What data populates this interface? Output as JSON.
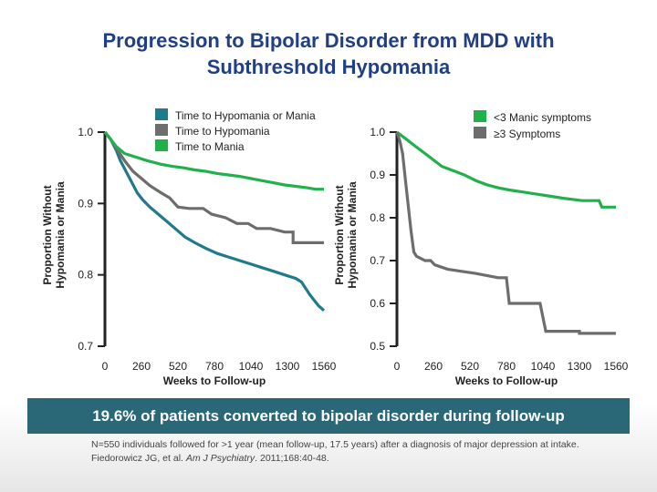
{
  "title_line1": "Progression to Bipolar Disorder from MDD with",
  "title_line2": "Subthreshold Hypomania",
  "colors": {
    "mania_or_hypomania": "#1f7b8c",
    "hypomania": "#6d6d6d",
    "mania": "#22b04b",
    "lt3": "#22b04b",
    "ge3": "#6d6d6d"
  },
  "chart_data": [
    {
      "type": "line",
      "ylabel_line1": "Proportion Without",
      "ylabel_line2": "Hypomania or Mania",
      "xlabel": "Weeks to Follow-up",
      "x_ticks": [
        "0",
        "260",
        "520",
        "780",
        "1040",
        "1300",
        "1560"
      ],
      "y_ticks": [
        "1.0",
        "0.9",
        "0.8",
        "0.7"
      ],
      "xlim": [
        0,
        1560
      ],
      "ylim": [
        0.7,
        1.0
      ],
      "series": [
        {
          "name": "Time to Hypomania or Mania",
          "color_key": "mania_or_hypomania",
          "points": [
            [
              0,
              1.0
            ],
            [
              40,
              0.99
            ],
            [
              80,
              0.975
            ],
            [
              110,
              0.96
            ],
            [
              150,
              0.945
            ],
            [
              190,
              0.93
            ],
            [
              230,
              0.915
            ],
            [
              270,
              0.905
            ],
            [
              320,
              0.895
            ],
            [
              380,
              0.885
            ],
            [
              440,
              0.875
            ],
            [
              500,
              0.865
            ],
            [
              570,
              0.853
            ],
            [
              640,
              0.845
            ],
            [
              720,
              0.837
            ],
            [
              800,
              0.83
            ],
            [
              880,
              0.825
            ],
            [
              960,
              0.82
            ],
            [
              1040,
              0.815
            ],
            [
              1120,
              0.81
            ],
            [
              1200,
              0.805
            ],
            [
              1280,
              0.8
            ],
            [
              1360,
              0.795
            ],
            [
              1400,
              0.79
            ],
            [
              1460,
              0.772
            ],
            [
              1520,
              0.757
            ],
            [
              1560,
              0.75
            ]
          ]
        },
        {
          "name": "Time to Hypomania",
          "color_key": "hypomania",
          "points": [
            [
              0,
              1.0
            ],
            [
              40,
              0.99
            ],
            [
              90,
              0.975
            ],
            [
              140,
              0.96
            ],
            [
              200,
              0.945
            ],
            [
              260,
              0.935
            ],
            [
              320,
              0.925
            ],
            [
              400,
              0.915
            ],
            [
              460,
              0.908
            ],
            [
              520,
              0.895
            ],
            [
              600,
              0.893
            ],
            [
              700,
              0.893
            ],
            [
              760,
              0.885
            ],
            [
              860,
              0.88
            ],
            [
              940,
              0.872
            ],
            [
              1020,
              0.872
            ],
            [
              1080,
              0.865
            ],
            [
              1180,
              0.865
            ],
            [
              1280,
              0.86
            ],
            [
              1340,
              0.86
            ],
            [
              1340,
              0.845
            ],
            [
              1440,
              0.845
            ],
            [
              1560,
              0.845
            ]
          ]
        },
        {
          "name": "Time to Mania",
          "color_key": "mania",
          "points": [
            [
              0,
              1.0
            ],
            [
              40,
              0.99
            ],
            [
              80,
              0.98
            ],
            [
              140,
              0.97
            ],
            [
              220,
              0.965
            ],
            [
              300,
              0.96
            ],
            [
              400,
              0.955
            ],
            [
              480,
              0.952
            ],
            [
              560,
              0.95
            ],
            [
              640,
              0.947
            ],
            [
              720,
              0.945
            ],
            [
              800,
              0.942
            ],
            [
              880,
              0.94
            ],
            [
              960,
              0.938
            ],
            [
              1040,
              0.935
            ],
            [
              1120,
              0.932
            ],
            [
              1200,
              0.929
            ],
            [
              1280,
              0.926
            ],
            [
              1360,
              0.924
            ],
            [
              1440,
              0.922
            ],
            [
              1500,
              0.92
            ],
            [
              1560,
              0.92
            ]
          ]
        }
      ],
      "legend": [
        "Time to Hypomania or Mania",
        "Time to Hypomania",
        "Time to Mania"
      ]
    },
    {
      "type": "line",
      "ylabel_line1": "Proportion Without",
      "ylabel_line2": "Hypomania or Mania",
      "xlabel": "Weeks to Follow-up",
      "x_ticks": [
        "0",
        "260",
        "520",
        "780",
        "1040",
        "1300",
        "1560"
      ],
      "y_ticks": [
        "1.0",
        "0.9",
        "0.8",
        "0.7",
        "0.6",
        "0.5"
      ],
      "xlim": [
        0,
        1560
      ],
      "ylim": [
        0.5,
        1.0
      ],
      "series": [
        {
          "name": "<3 Manic symptoms",
          "color_key": "lt3",
          "points": [
            [
              0,
              1.0
            ],
            [
              40,
              0.99
            ],
            [
              80,
              0.98
            ],
            [
              140,
              0.965
            ],
            [
              200,
              0.95
            ],
            [
              260,
              0.935
            ],
            [
              320,
              0.92
            ],
            [
              400,
              0.91
            ],
            [
              480,
              0.9
            ],
            [
              560,
              0.887
            ],
            [
              640,
              0.877
            ],
            [
              720,
              0.87
            ],
            [
              800,
              0.865
            ],
            [
              900,
              0.86
            ],
            [
              1000,
              0.855
            ],
            [
              1100,
              0.85
            ],
            [
              1200,
              0.845
            ],
            [
              1320,
              0.84
            ],
            [
              1440,
              0.84
            ],
            [
              1460,
              0.825
            ],
            [
              1560,
              0.825
            ]
          ]
        },
        {
          "name": "≥3 Symptoms",
          "color_key": "ge3",
          "points": [
            [
              0,
              1.0
            ],
            [
              20,
              0.98
            ],
            [
              40,
              0.95
            ],
            [
              60,
              0.89
            ],
            [
              80,
              0.83
            ],
            [
              100,
              0.77
            ],
            [
              120,
              0.72
            ],
            [
              140,
              0.71
            ],
            [
              200,
              0.7
            ],
            [
              240,
              0.7
            ],
            [
              270,
              0.69
            ],
            [
              360,
              0.68
            ],
            [
              460,
              0.675
            ],
            [
              560,
              0.67
            ],
            [
              640,
              0.665
            ],
            [
              720,
              0.66
            ],
            [
              780,
              0.66
            ],
            [
              800,
              0.6
            ],
            [
              900,
              0.6
            ],
            [
              1020,
              0.6
            ],
            [
              1060,
              0.535
            ],
            [
              1300,
              0.535
            ],
            [
              1300,
              0.53
            ],
            [
              1560,
              0.53
            ]
          ]
        }
      ],
      "legend": [
        "<3 Manic symptoms",
        "≥3 Symptoms"
      ]
    }
  ],
  "banner": "19.6% of patients converted to bipolar disorder during follow-up",
  "footnote_line1": "N=550 individuals followed for >1 year (mean follow-up, 17.5 years) after a diagnosis of major depression at intake.",
  "footnote_line2_pre": "Fiedorowicz JG, et al. ",
  "footnote_line2_journal": "Am J Psychiatry",
  "footnote_line2_post": ". 2011;168:40-48."
}
